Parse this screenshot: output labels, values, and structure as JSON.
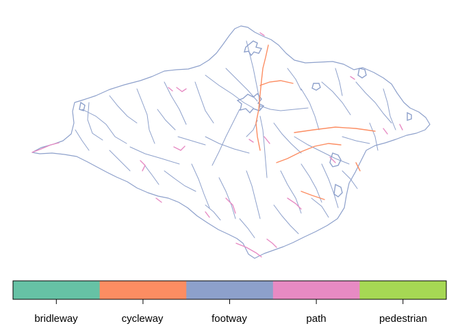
{
  "legend": {
    "categories": [
      {
        "label": "bridleway",
        "color": "#66C2A5"
      },
      {
        "label": "cycleway",
        "color": "#FC8D62"
      },
      {
        "label": "footway",
        "color": "#8DA0CB"
      },
      {
        "label": "path",
        "color": "#E78AC3"
      },
      {
        "label": "pedestrian",
        "color": "#A6D854"
      }
    ]
  },
  "map": {
    "subject": "Isle of Wight path network",
    "line_colors": {
      "footway": "#8DA0CB",
      "path": "#E78AC3",
      "cycleway": "#FC8D62"
    }
  }
}
